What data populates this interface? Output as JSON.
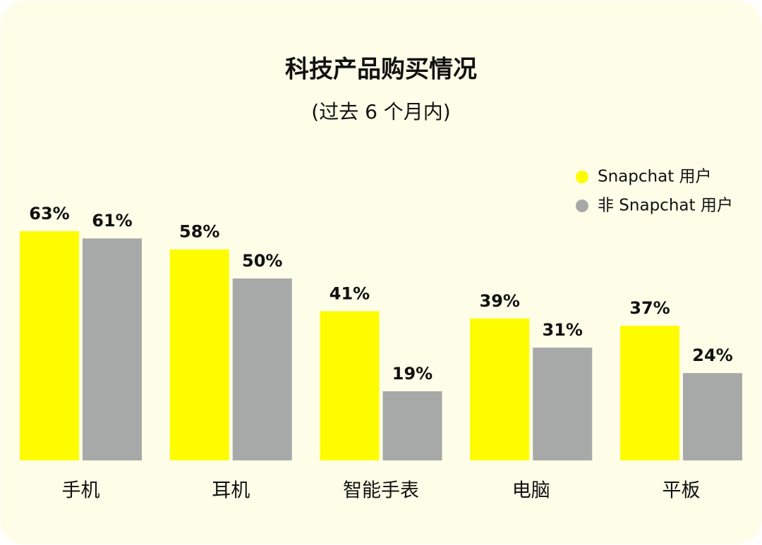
{
  "chart_data": {
    "type": "bar",
    "title": "科技产品购买情况",
    "subtitle": "(过去 6 个月内)",
    "categories": [
      "手机",
      "耳机",
      "智能手表",
      "电脑",
      "平板"
    ],
    "series": [
      {
        "name": "Snapchat 用户",
        "color": "#fffc00",
        "values": [
          63,
          58,
          41,
          39,
          37
        ],
        "value_labels": [
          "63%",
          "58%",
          "41%",
          "39%",
          "37%"
        ]
      },
      {
        "name": "非 Snapchat 用户",
        "color": "#a7a9a8",
        "values": [
          61,
          50,
          19,
          31,
          24
        ],
        "value_labels": [
          "61%",
          "50%",
          "19%",
          "31%",
          "24%"
        ]
      }
    ],
    "ylim": [
      0,
      100
    ],
    "legend": "upper right"
  }
}
